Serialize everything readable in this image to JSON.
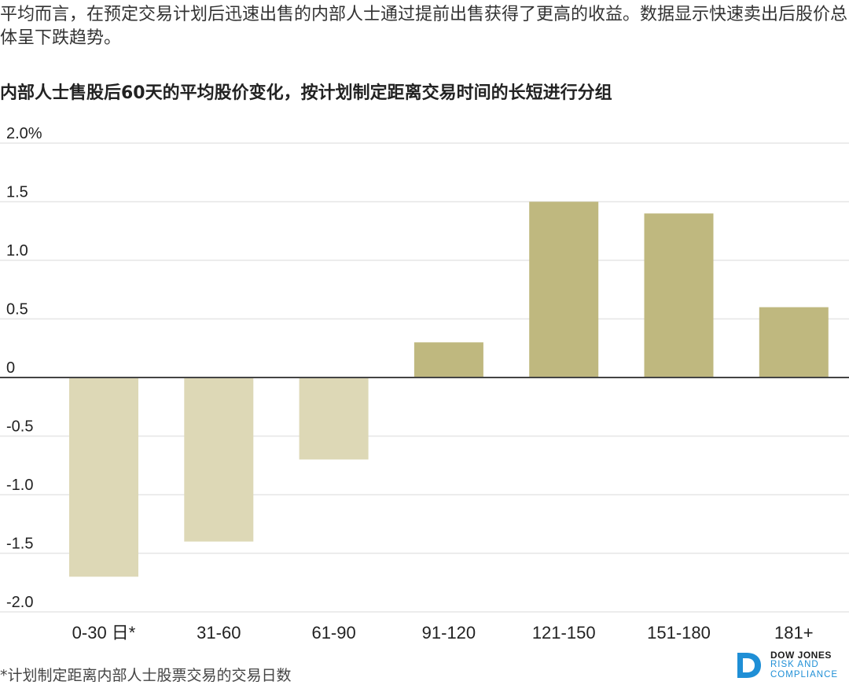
{
  "intro": "平均而言，在预定交易计划后迅速出售的内部人士通过提前出售获得了更高的收益。数据显示快速卖出后股价总体呈下跌趋势。",
  "footnote": "*计划制定距离内部人士股票交易的交易日数",
  "logo": {
    "line1": "DOW JONES",
    "line2": "RISK AND",
    "line3": "COMPLIANCE"
  },
  "colors": {
    "positive": "#bfb87f",
    "negative": "#ddd8b6",
    "grid": "#e6e6e6",
    "zero_line": "#444444",
    "logo_accent": "#1f8fd6"
  },
  "chart_data": {
    "type": "bar",
    "title": "内部人士售股后60天的平均股价变化，按计划制定距离交易时间的长短进行分组",
    "xlabel": "",
    "ylabel": "",
    "categories": [
      "0-30 日*",
      "31-60",
      "61-90",
      "91-120",
      "121-150",
      "151-180",
      "181+"
    ],
    "values": [
      -1.7,
      -1.4,
      -0.7,
      0.3,
      1.5,
      1.4,
      0.6
    ],
    "ylim": [
      -2.0,
      2.0
    ],
    "yticks": [
      2.0,
      1.5,
      1.0,
      0.5,
      0,
      -0.5,
      -1.0,
      -1.5,
      -2.0
    ],
    "ytick_labels": [
      "2.0%",
      "1.5",
      "1.0",
      "0.5",
      "0",
      "-0.5",
      "-1.0",
      "-1.5",
      "-2.0"
    ],
    "grid": true,
    "legend": "none"
  }
}
